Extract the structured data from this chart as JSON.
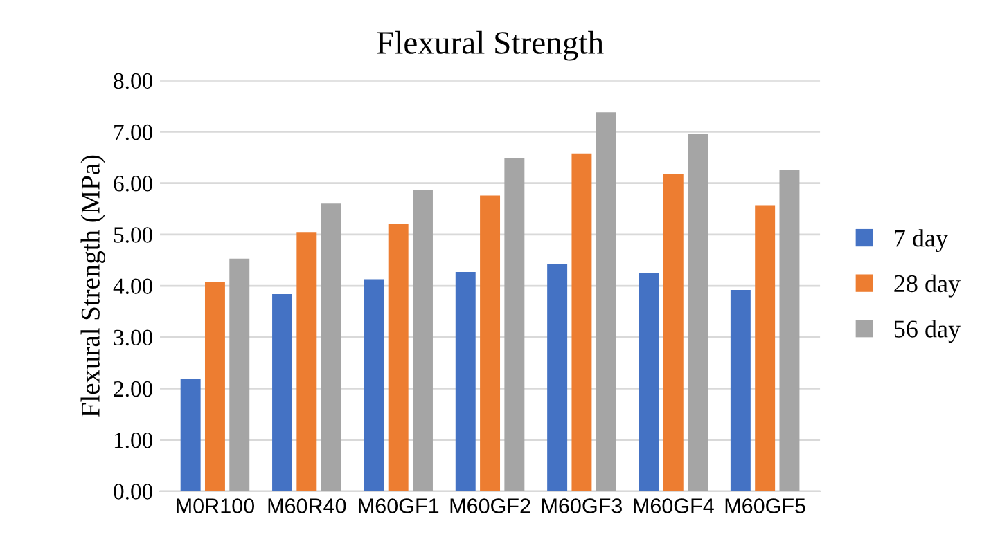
{
  "chart_data": {
    "type": "bar",
    "title": "Flexural Strength",
    "ylabel": "Flexural Strength (MPa)",
    "categories": [
      "M0R100",
      "M60R40",
      "M60GF1",
      "M60GF2",
      "M60GF3",
      "M60GF4",
      "M60GF5"
    ],
    "series": [
      {
        "name": "7 day",
        "color": "#4472c4",
        "values": [
          2.18,
          3.84,
          4.13,
          4.27,
          4.43,
          4.25,
          3.92
        ]
      },
      {
        "name": "28 day",
        "color": "#ed7d31",
        "values": [
          4.08,
          5.05,
          5.21,
          5.76,
          6.58,
          6.18,
          5.57
        ]
      },
      {
        "name": "56 day",
        "color": "#a5a5a5",
        "values": [
          4.53,
          5.6,
          5.87,
          6.49,
          7.38,
          6.96,
          6.26
        ]
      }
    ],
    "ylim": [
      0,
      8
    ],
    "yticks": [
      {
        "value": 0,
        "label": "0.00"
      },
      {
        "value": 1,
        "label": "1.00"
      },
      {
        "value": 2,
        "label": "2.00"
      },
      {
        "value": 3,
        "label": "3.00"
      },
      {
        "value": 4,
        "label": "4.00"
      },
      {
        "value": 5,
        "label": "5.00"
      },
      {
        "value": 6,
        "label": "6.00"
      },
      {
        "value": 7,
        "label": "7.00"
      },
      {
        "value": 8,
        "label": "8.00"
      }
    ],
    "grid": "y",
    "legend": "right"
  }
}
